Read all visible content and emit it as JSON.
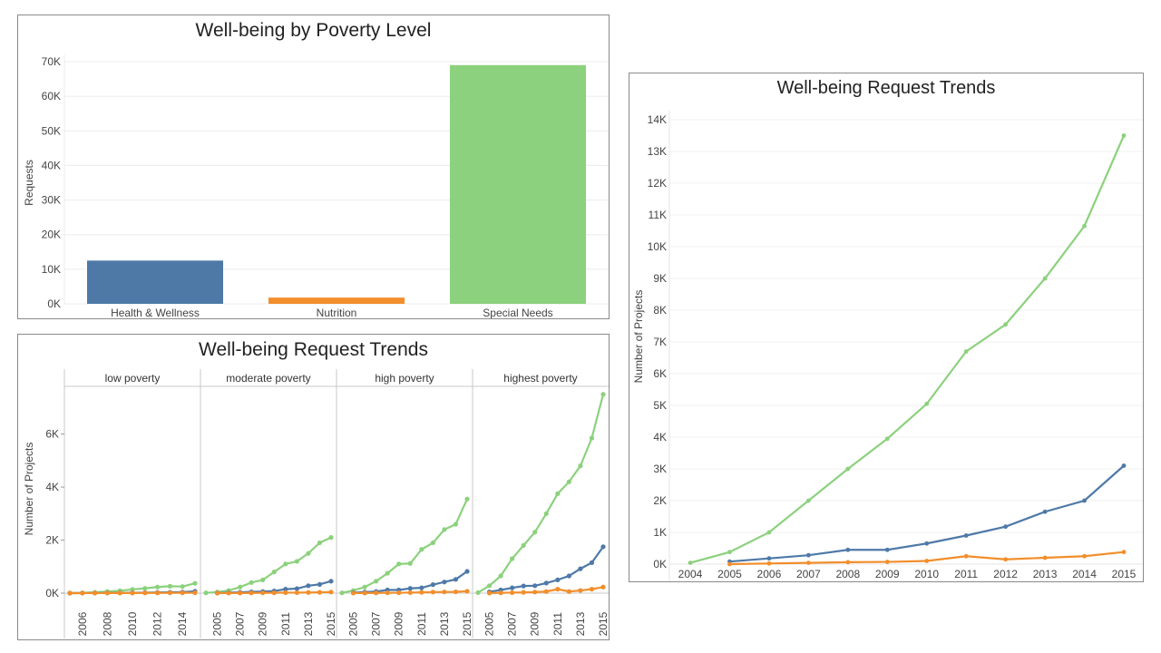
{
  "colors": {
    "health": "#4e79a7",
    "nutrition": "#f28e2b",
    "special": "#8cd17d"
  },
  "chart_data": [
    {
      "id": "poverty-bars",
      "type": "bar",
      "title": "Well-being by Poverty Level",
      "ylabel": "Requests",
      "xlabel": "",
      "categories": [
        "Health & Wellness",
        "Nutrition",
        "Special Needs"
      ],
      "values": [
        12500,
        1800,
        69000
      ],
      "ylim": [
        0,
        70000
      ],
      "yticks": [
        0,
        10000,
        20000,
        30000,
        40000,
        50000,
        60000,
        70000
      ],
      "yticklabels": [
        "0K",
        "10K",
        "20K",
        "30K",
        "40K",
        "50K",
        "60K",
        "70K"
      ],
      "grid": true
    },
    {
      "id": "faceted-trends",
      "type": "line",
      "title": "Well-being Request Trends",
      "ylabel": "Number of Projects",
      "ylim": [
        0,
        7800
      ],
      "yticks": [
        0,
        2000,
        4000,
        6000
      ],
      "yticklabels": [
        "0K",
        "2K",
        "4K",
        "6K"
      ],
      "facets": [
        {
          "label": "low poverty",
          "x": [
            2005,
            2006,
            2007,
            2008,
            2009,
            2010,
            2011,
            2012,
            2013,
            2014,
            2015
          ],
          "xticklabels": [
            "2006",
            "2008",
            "2010",
            "2012",
            "2014"
          ],
          "xticks": [
            2006,
            2008,
            2010,
            2012,
            2014
          ],
          "series": [
            {
              "name": "Special Needs",
              "x": [
                2005,
                2006,
                2007,
                2008,
                2009,
                2010,
                2011,
                2012,
                2013,
                2014,
                2015
              ],
              "values": [
                5,
                15,
                30,
                60,
                90,
                140,
                180,
                230,
                260,
                250,
                370
              ]
            },
            {
              "name": "Health & Wellness",
              "x": [
                2005,
                2006,
                2007,
                2008,
                2009,
                2010,
                2011,
                2012,
                2013,
                2014,
                2015
              ],
              "values": [
                0,
                2,
                5,
                8,
                10,
                15,
                20,
                25,
                30,
                40,
                70
              ]
            },
            {
              "name": "Nutrition",
              "x": [
                2005,
                2006,
                2007,
                2008,
                2009,
                2010,
                2011,
                2012,
                2013,
                2014,
                2015
              ],
              "values": [
                0,
                1,
                2,
                3,
                4,
                5,
                8,
                8,
                10,
                12,
                15
              ]
            }
          ]
        },
        {
          "label": "moderate poverty",
          "x": [
            2004,
            2005,
            2006,
            2007,
            2008,
            2009,
            2010,
            2011,
            2012,
            2013,
            2014,
            2015
          ],
          "xticklabels": [
            "2005",
            "2007",
            "2009",
            "2011",
            "2013",
            "2015"
          ],
          "xticks": [
            2005,
            2007,
            2009,
            2011,
            2013,
            2015
          ],
          "series": [
            {
              "name": "Special Needs",
              "x": [
                2004,
                2005,
                2006,
                2007,
                2008,
                2009,
                2010,
                2011,
                2012,
                2013,
                2014,
                2015
              ],
              "values": [
                10,
                40,
                100,
                230,
                400,
                500,
                800,
                1100,
                1200,
                1500,
                1900,
                2100
              ]
            },
            {
              "name": "Health & Wellness",
              "x": [
                2005,
                2006,
                2007,
                2008,
                2009,
                2010,
                2011,
                2012,
                2013,
                2014,
                2015
              ],
              "values": [
                10,
                20,
                30,
                50,
                60,
                80,
                150,
                170,
                280,
                330,
                450
              ]
            },
            {
              "name": "Nutrition",
              "x": [
                2005,
                2006,
                2007,
                2008,
                2009,
                2010,
                2011,
                2012,
                2013,
                2014,
                2015
              ],
              "values": [
                0,
                2,
                5,
                8,
                10,
                12,
                20,
                20,
                25,
                30,
                40
              ]
            }
          ]
        },
        {
          "label": "high poverty",
          "x": [
            2004,
            2005,
            2006,
            2007,
            2008,
            2009,
            2010,
            2011,
            2012,
            2013,
            2014,
            2015
          ],
          "xticklabels": [
            "2005",
            "2007",
            "2009",
            "2011",
            "2013",
            "2015"
          ],
          "xticks": [
            2005,
            2007,
            2009,
            2011,
            2013,
            2015
          ],
          "series": [
            {
              "name": "Special Needs",
              "x": [
                2004,
                2005,
                2006,
                2007,
                2008,
                2009,
                2010,
                2011,
                2012,
                2013,
                2014,
                2015
              ],
              "values": [
                10,
                100,
                230,
                450,
                750,
                1100,
                1120,
                1650,
                1900,
                2400,
                2600,
                3550
              ]
            },
            {
              "name": "Health & Wellness",
              "x": [
                2005,
                2006,
                2007,
                2008,
                2009,
                2010,
                2011,
                2012,
                2013,
                2014,
                2015
              ],
              "values": [
                20,
                40,
                60,
                120,
                120,
                180,
                200,
                320,
                420,
                520,
                820
              ]
            },
            {
              "name": "Nutrition",
              "x": [
                2005,
                2006,
                2007,
                2008,
                2009,
                2010,
                2011,
                2012,
                2013,
                2014,
                2015
              ],
              "values": [
                2,
                5,
                8,
                10,
                15,
                20,
                30,
                40,
                45,
                50,
                70
              ]
            }
          ]
        },
        {
          "label": "highest poverty",
          "x": [
            2004,
            2005,
            2006,
            2007,
            2008,
            2009,
            2010,
            2011,
            2012,
            2013,
            2014,
            2015
          ],
          "xticklabels": [
            "2005",
            "2007",
            "2009",
            "2011",
            "2013",
            "2015"
          ],
          "xticks": [
            2005,
            2007,
            2009,
            2011,
            2013,
            2015
          ],
          "series": [
            {
              "name": "Special Needs",
              "x": [
                2004,
                2005,
                2006,
                2007,
                2008,
                2009,
                2010,
                2011,
                2012,
                2013,
                2014,
                2015
              ],
              "values": [
                20,
                280,
                650,
                1300,
                1800,
                2300,
                3000,
                3750,
                4200,
                4800,
                5850,
                7500
              ]
            },
            {
              "name": "Health & Wellness",
              "x": [
                2005,
                2006,
                2007,
                2008,
                2009,
                2010,
                2011,
                2012,
                2013,
                2014,
                2015
              ],
              "values": [
                50,
                120,
                200,
                270,
                280,
                380,
                500,
                650,
                920,
                1150,
                1750
              ]
            },
            {
              "name": "Nutrition",
              "x": [
                2005,
                2006,
                2007,
                2008,
                2009,
                2010,
                2011,
                2012,
                2013,
                2014,
                2015
              ],
              "values": [
                5,
                10,
                20,
                30,
                40,
                60,
                150,
                60,
                100,
                150,
                230
              ]
            }
          ]
        }
      ]
    },
    {
      "id": "overall-trends",
      "type": "line",
      "title": "Well-being Request Trends",
      "ylabel": "Number of Projects",
      "xlabel": "",
      "x": [
        2004,
        2005,
        2006,
        2007,
        2008,
        2009,
        2010,
        2011,
        2012,
        2013,
        2014,
        2015
      ],
      "xticklabels": [
        "2004",
        "2005",
        "2006",
        "2007",
        "2008",
        "2009",
        "2010",
        "2011",
        "2012",
        "2013",
        "2014",
        "2015"
      ],
      "ylim": [
        0,
        14000
      ],
      "yticks": [
        0,
        1000,
        2000,
        3000,
        4000,
        5000,
        6000,
        7000,
        8000,
        9000,
        10000,
        11000,
        12000,
        13000,
        14000
      ],
      "yticklabels": [
        "0K",
        "1K",
        "2K",
        "3K",
        "4K",
        "5K",
        "6K",
        "7K",
        "8K",
        "9K",
        "10K",
        "11K",
        "12K",
        "13K",
        "14K"
      ],
      "series": [
        {
          "name": "Special Needs",
          "x": [
            2004,
            2005,
            2006,
            2007,
            2008,
            2009,
            2010,
            2011,
            2012,
            2013,
            2014,
            2015
          ],
          "values": [
            40,
            380,
            1000,
            2000,
            3000,
            3950,
            5050,
            6700,
            7550,
            9000,
            10650,
            13500
          ]
        },
        {
          "name": "Health & Wellness",
          "x": [
            2005,
            2006,
            2007,
            2008,
            2009,
            2010,
            2011,
            2012,
            2013,
            2014,
            2015
          ],
          "values": [
            80,
            180,
            280,
            450,
            450,
            650,
            900,
            1180,
            1650,
            2000,
            3100
          ]
        },
        {
          "name": "Nutrition",
          "x": [
            2005,
            2006,
            2007,
            2008,
            2009,
            2010,
            2011,
            2012,
            2013,
            2014,
            2015
          ],
          "values": [
            0,
            20,
            40,
            60,
            70,
            100,
            250,
            150,
            200,
            250,
            380
          ]
        }
      ]
    }
  ]
}
